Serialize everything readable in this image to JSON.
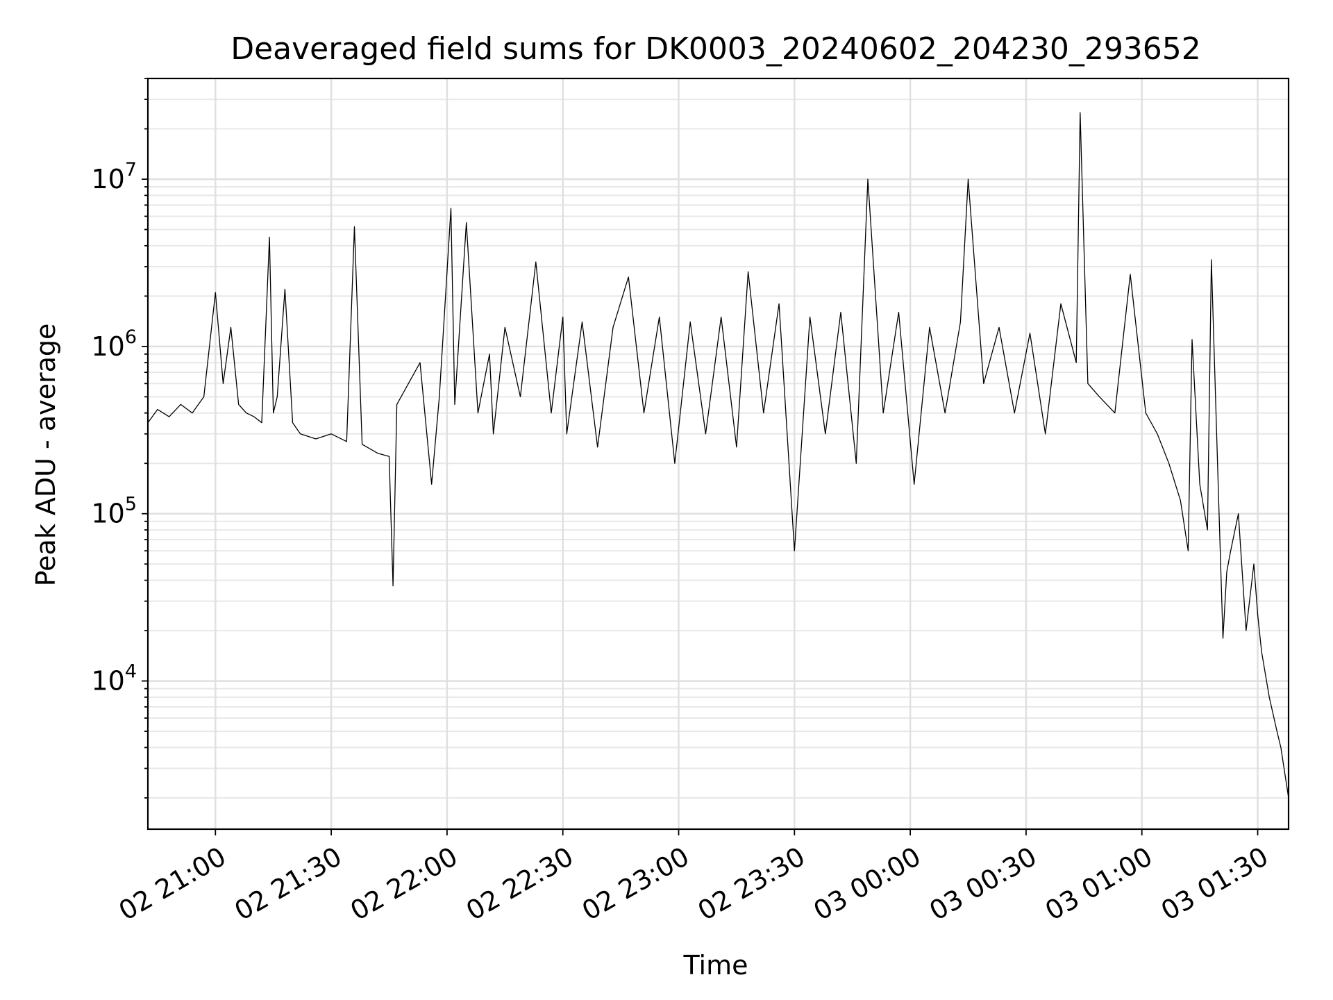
{
  "chart_data": {
    "type": "line",
    "title": "Deaveraged field sums for DK0003_20240602_204230_293652",
    "xlabel": "Time",
    "ylabel": "Peak ADU - average",
    "yscale": "log",
    "ylim": [
      1300,
      40000000
    ],
    "xlim": [
      "2024-06-02 20:42:30",
      "2024-06-03 01:38:00"
    ],
    "x_ticks": [
      {
        "value": "2024-06-02 21:00",
        "label": "02 21:00"
      },
      {
        "value": "2024-06-02 21:30",
        "label": "02 21:30"
      },
      {
        "value": "2024-06-02 22:00",
        "label": "02 22:00"
      },
      {
        "value": "2024-06-02 22:30",
        "label": "02 22:30"
      },
      {
        "value": "2024-06-02 23:00",
        "label": "02 23:00"
      },
      {
        "value": "2024-06-02 23:30",
        "label": "02 23:30"
      },
      {
        "value": "2024-06-03 00:00",
        "label": "03 00:00"
      },
      {
        "value": "2024-06-03 00:30",
        "label": "03 00:30"
      },
      {
        "value": "2024-06-03 01:00",
        "label": "03 01:00"
      },
      {
        "value": "2024-06-03 01:30",
        "label": "03 01:30"
      }
    ],
    "y_ticks": [
      {
        "value": 10000,
        "base": "10",
        "exp": "4"
      },
      {
        "value": 100000,
        "base": "10",
        "exp": "5"
      },
      {
        "value": 1000000,
        "base": "10",
        "exp": "6"
      },
      {
        "value": 10000000,
        "base": "10",
        "exp": "7"
      }
    ],
    "grid": true,
    "line_color": "#000000",
    "series": [
      {
        "x": [
          "2024-06-02 20:42:30",
          "2024-06-02 20:45",
          "2024-06-02 20:48",
          "2024-06-02 20:51",
          "2024-06-02 20:54",
          "2024-06-02 20:57",
          "2024-06-02 21:00",
          "2024-06-02 21:02",
          "2024-06-02 21:04",
          "2024-06-02 21:06",
          "2024-06-02 21:08",
          "2024-06-02 21:10",
          "2024-06-02 21:12",
          "2024-06-02 21:14",
          "2024-06-02 21:15",
          "2024-06-02 21:16",
          "2024-06-02 21:18",
          "2024-06-02 21:20",
          "2024-06-02 21:22",
          "2024-06-02 21:26",
          "2024-06-02 21:30",
          "2024-06-02 21:34",
          "2024-06-02 21:36",
          "2024-06-02 21:38",
          "2024-06-02 21:42",
          "2024-06-02 21:45",
          "2024-06-02 21:46",
          "2024-06-02 21:47",
          "2024-06-02 21:50",
          "2024-06-02 21:53",
          "2024-06-02 21:56",
          "2024-06-02 21:58",
          "2024-06-02 22:01",
          "2024-06-02 22:02",
          "2024-06-02 22:05",
          "2024-06-02 22:08",
          "2024-06-02 22:11",
          "2024-06-02 22:12",
          "2024-06-02 22:15",
          "2024-06-02 22:19",
          "2024-06-02 22:23",
          "2024-06-02 22:27",
          "2024-06-02 22:30",
          "2024-06-02 22:31",
          "2024-06-02 22:35",
          "2024-06-02 22:39",
          "2024-06-02 22:43",
          "2024-06-02 22:47",
          "2024-06-02 22:51",
          "2024-06-02 22:55",
          "2024-06-02 22:59",
          "2024-06-02 23:03",
          "2024-06-02 23:07",
          "2024-06-02 23:11",
          "2024-06-02 23:15",
          "2024-06-02 23:18",
          "2024-06-02 23:22",
          "2024-06-02 23:26",
          "2024-06-02 23:30",
          "2024-06-02 23:34",
          "2024-06-02 23:38",
          "2024-06-02 23:42",
          "2024-06-02 23:46",
          "2024-06-02 23:49",
          "2024-06-02 23:53",
          "2024-06-02 23:57",
          "2024-06-03 00:01",
          "2024-06-03 00:05",
          "2024-06-03 00:09",
          "2024-06-03 00:13",
          "2024-06-03 00:15",
          "2024-06-03 00:19",
          "2024-06-03 00:23",
          "2024-06-03 00:27",
          "2024-06-03 00:31",
          "2024-06-03 00:35",
          "2024-06-03 00:39",
          "2024-06-03 00:43",
          "2024-06-03 00:44",
          "2024-06-03 00:46",
          "2024-06-03 00:49",
          "2024-06-03 00:53",
          "2024-06-03 00:57",
          "2024-06-03 01:01",
          "2024-06-03 01:04",
          "2024-06-03 01:07",
          "2024-06-03 01:10",
          "2024-06-03 01:12",
          "2024-06-03 01:13",
          "2024-06-03 01:15",
          "2024-06-03 01:17",
          "2024-06-03 01:18",
          "2024-06-03 01:20",
          "2024-06-03 01:21",
          "2024-06-03 01:22",
          "2024-06-03 01:23",
          "2024-06-03 01:25",
          "2024-06-03 01:27",
          "2024-06-03 01:29",
          "2024-06-03 01:30",
          "2024-06-03 01:31",
          "2024-06-03 01:33",
          "2024-06-03 01:35",
          "2024-06-03 01:36",
          "2024-06-03 01:38"
        ],
        "y": [
          350000,
          420000,
          380000,
          450000,
          400000,
          500000,
          2100000,
          600000,
          1300000,
          450000,
          400000,
          380000,
          350000,
          4500000,
          400000,
          500000,
          2200000,
          350000,
          300000,
          280000,
          300000,
          270000,
          5200000,
          260000,
          230000,
          220000,
          37000,
          450000,
          600000,
          800000,
          150000,
          500000,
          6700000,
          450000,
          5500000,
          400000,
          900000,
          300000,
          1300000,
          500000,
          3200000,
          400000,
          1500000,
          300000,
          1400000,
          250000,
          1300000,
          2600000,
          400000,
          1500000,
          200000,
          1400000,
          300000,
          1500000,
          250000,
          2800000,
          400000,
          1800000,
          60000,
          1500000,
          300000,
          1600000,
          200000,
          10000000,
          400000,
          1600000,
          150000,
          1300000,
          400000,
          1400000,
          10000000,
          600000,
          1300000,
          400000,
          1200000,
          300000,
          1800000,
          800000,
          25000000,
          600000,
          500000,
          400000,
          2700000,
          400000,
          300000,
          200000,
          120000,
          60000,
          1100000,
          150000,
          80000,
          3300000,
          100000,
          18000,
          45000,
          60000,
          100000,
          20000,
          50000,
          25000,
          15000,
          8000,
          5000,
          4000,
          2000
        ]
      }
    ]
  }
}
